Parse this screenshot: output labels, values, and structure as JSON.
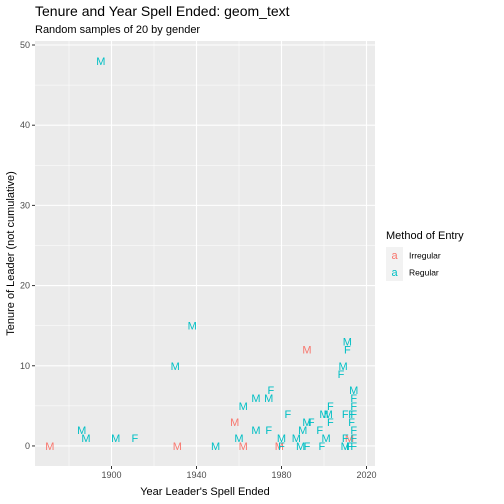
{
  "chart_data": {
    "type": "scatter",
    "geom": "text",
    "title": "Tenure and Year Spell Ended: geom_text",
    "subtitle": "Random samples of 20 by gender",
    "xlabel": "Year Leader's Spell Ended",
    "ylabel": "Tenure of Leader (not cumulative)",
    "xlim": [
      1864,
      2024
    ],
    "ylim": [
      -2.5,
      50.5
    ],
    "x_ticks": [
      1900,
      1940,
      1980,
      2020
    ],
    "y_ticks": [
      0,
      10,
      20,
      30,
      40,
      50
    ],
    "grid": true,
    "legend": {
      "title": "Method of Entry",
      "position": "right",
      "key_glyph": "a",
      "entries": [
        {
          "name": "Irregular",
          "color": "#F8766D"
        },
        {
          "name": "Regular",
          "color": "#00BFC4"
        }
      ]
    },
    "series": [
      {
        "name": "Irregular",
        "color": "#F8766D",
        "points": [
          {
            "x": 1871,
            "y": 0,
            "label": "M"
          },
          {
            "x": 1931,
            "y": 0,
            "label": "M"
          },
          {
            "x": 1958,
            "y": 3,
            "label": "M"
          },
          {
            "x": 1962,
            "y": 0,
            "label": "M"
          },
          {
            "x": 1979,
            "y": 0,
            "label": "M"
          },
          {
            "x": 1992,
            "y": 12,
            "label": "M"
          },
          {
            "x": 2012,
            "y": 1,
            "label": "M"
          }
        ]
      },
      {
        "name": "Regular",
        "color": "#00BFC4",
        "points": [
          {
            "x": 1895,
            "y": 48,
            "label": "M"
          },
          {
            "x": 1938,
            "y": 15,
            "label": "M"
          },
          {
            "x": 1930,
            "y": 10,
            "label": "M"
          },
          {
            "x": 1886,
            "y": 2,
            "label": "M"
          },
          {
            "x": 1888,
            "y": 1,
            "label": "M"
          },
          {
            "x": 1902,
            "y": 1,
            "label": "M"
          },
          {
            "x": 1911,
            "y": 1,
            "label": "F"
          },
          {
            "x": 1949,
            "y": 0,
            "label": "M"
          },
          {
            "x": 1960,
            "y": 1,
            "label": "M"
          },
          {
            "x": 1962,
            "y": 5,
            "label": "M"
          },
          {
            "x": 1968,
            "y": 2,
            "label": "M"
          },
          {
            "x": 1968,
            "y": 6,
            "label": "M"
          },
          {
            "x": 1974,
            "y": 6,
            "label": "M"
          },
          {
            "x": 1975,
            "y": 7,
            "label": "F"
          },
          {
            "x": 1974,
            "y": 2,
            "label": "F"
          },
          {
            "x": 1980,
            "y": 1,
            "label": "M"
          },
          {
            "x": 1980,
            "y": 0,
            "label": "F"
          },
          {
            "x": 1983,
            "y": 4,
            "label": "F"
          },
          {
            "x": 1987,
            "y": 1,
            "label": "M"
          },
          {
            "x": 1989,
            "y": 0,
            "label": "M"
          },
          {
            "x": 1990,
            "y": 2,
            "label": "M"
          },
          {
            "x": 1992,
            "y": 0,
            "label": "F"
          },
          {
            "x": 1992,
            "y": 3,
            "label": "M"
          },
          {
            "x": 1994,
            "y": 3,
            "label": "F"
          },
          {
            "x": 1998,
            "y": 2,
            "label": "F"
          },
          {
            "x": 1999,
            "y": 0,
            "label": "F"
          },
          {
            "x": 2000,
            "y": 4,
            "label": "M"
          },
          {
            "x": 2001,
            "y": 1,
            "label": "M"
          },
          {
            "x": 2002,
            "y": 4,
            "label": "M"
          },
          {
            "x": 2003,
            "y": 3,
            "label": "F"
          },
          {
            "x": 2003,
            "y": 5,
            "label": "F"
          },
          {
            "x": 2008,
            "y": 9,
            "label": "F"
          },
          {
            "x": 2009,
            "y": 10,
            "label": "M"
          },
          {
            "x": 2010,
            "y": 4,
            "label": "F"
          },
          {
            "x": 2010,
            "y": 1,
            "label": "F"
          },
          {
            "x": 2010,
            "y": 0,
            "label": "M"
          },
          {
            "x": 2011,
            "y": 13,
            "label": "M"
          },
          {
            "x": 2011,
            "y": 12,
            "label": "F"
          },
          {
            "x": 2012,
            "y": 0,
            "label": "F"
          },
          {
            "x": 2013,
            "y": 4,
            "label": "F"
          },
          {
            "x": 2013,
            "y": 3,
            "label": "F"
          },
          {
            "x": 2014,
            "y": 7,
            "label": "M"
          },
          {
            "x": 2014,
            "y": 6,
            "label": "F"
          },
          {
            "x": 2014,
            "y": 5,
            "label": "F"
          },
          {
            "x": 2014,
            "y": 4,
            "label": "F"
          },
          {
            "x": 2014,
            "y": 2,
            "label": "F"
          },
          {
            "x": 2014,
            "y": 1,
            "label": "F"
          },
          {
            "x": 2014,
            "y": 0,
            "label": "F"
          }
        ]
      }
    ]
  }
}
